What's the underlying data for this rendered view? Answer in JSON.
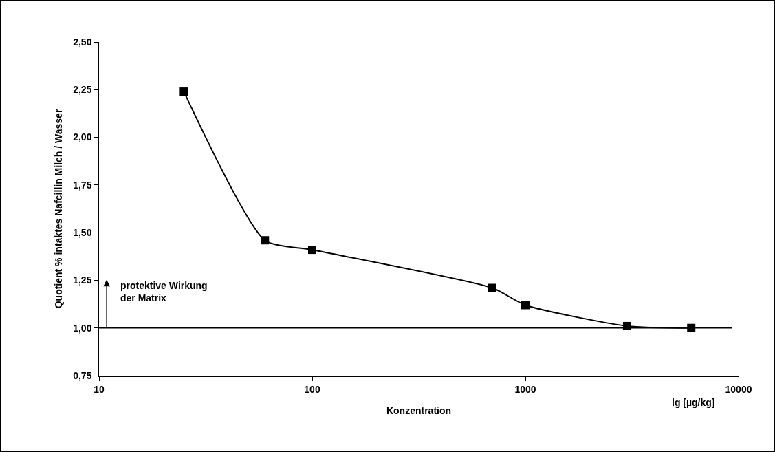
{
  "chart_data": {
    "type": "line",
    "xlabel": "Konzentration",
    "ylabel": "Quotient % intaktes Nafcillin Milch / Wasser",
    "x": [
      25,
      60,
      100,
      700,
      1000,
      3000,
      6000
    ],
    "values": [
      2.24,
      1.46,
      1.41,
      1.21,
      1.12,
      1.01,
      1.0
    ],
    "color": "#000000",
    "marker": "square",
    "line_style": "solid",
    "log": "x",
    "grid": false,
    "legend": false,
    "xlim": [
      10,
      10000
    ],
    "xticks": [
      10,
      100,
      1000,
      10000
    ],
    "ylim": [
      0.75,
      2.5
    ],
    "yticks": [
      {
        "value": 0.75,
        "label": "0,75"
      },
      {
        "value": 1,
        "label": "1,00"
      },
      {
        "value": 1.25,
        "label": "1,25"
      },
      {
        "value": 1.5,
        "label": "1,50"
      },
      {
        "value": 1.75,
        "label": "1,75"
      },
      {
        "value": 2,
        "label": "2,00"
      },
      {
        "value": 2.25,
        "label": "2,25"
      },
      {
        "value": 2.5,
        "label": "2,50"
      }
    ],
    "ref_lines": [
      {
        "axis": "y",
        "value": 1,
        "color": "#000000"
      }
    ],
    "annotations": [
      "protektive Wirkung\nder Matrix",
      "lg [µg/kg]"
    ]
  }
}
